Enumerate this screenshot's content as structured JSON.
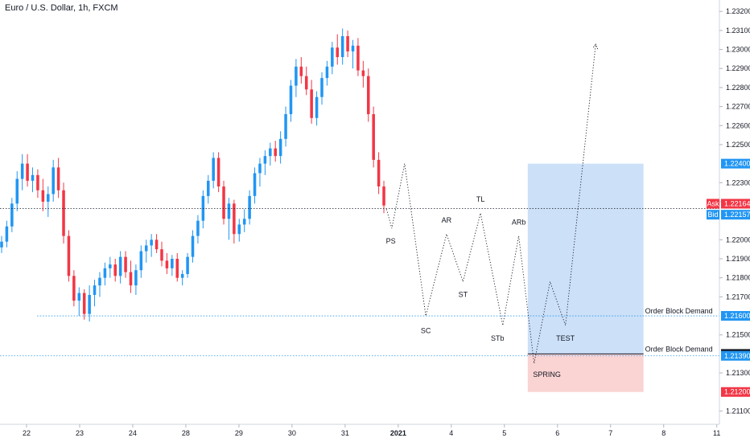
{
  "chart_data": {
    "type": "candlestick",
    "title": "Euro / U.S. Dollar, 1h, FXCM",
    "ylim": [
      1.2103,
      1.2326
    ],
    "y_ticks": [
      "1.23200",
      "1.23100",
      "1.23000",
      "1.22900",
      "1.22800",
      "1.22700",
      "1.22600",
      "1.22500",
      "1.22300",
      "1.22200",
      "1.22000",
      "1.21900",
      "1.21800",
      "1.21700",
      "1.21500",
      "1.21300",
      "1.21100"
    ],
    "x_ticks": [
      {
        "label": "22",
        "d": 22
      },
      {
        "label": "23",
        "d": 23
      },
      {
        "label": "24",
        "d": 24
      },
      {
        "label": "28",
        "d": 25
      },
      {
        "label": "29",
        "d": 26
      },
      {
        "label": "30",
        "d": 27
      },
      {
        "label": "31",
        "d": 28
      },
      {
        "label": "2021",
        "d": 29
      },
      {
        "label": "4",
        "d": 30
      },
      {
        "label": "5",
        "d": 31
      },
      {
        "label": "6",
        "d": 32
      },
      {
        "label": "7",
        "d": 33
      },
      {
        "label": "8",
        "d": 34
      },
      {
        "label": "11",
        "d": 35
      }
    ],
    "xlim": [
      21.5,
      35.05
    ],
    "up_color": "#2196f3",
    "down_color": "#f23645",
    "candles": [
      [
        1.2196,
        1.2202,
        1.2193,
        1.2199
      ],
      [
        1.2199,
        1.221,
        1.2196,
        1.2207
      ],
      [
        1.2207,
        1.2222,
        1.2204,
        1.2219
      ],
      [
        1.2219,
        1.2236,
        1.2215,
        1.2232
      ],
      [
        1.2232,
        1.2245,
        1.2226,
        1.224
      ],
      [
        1.224,
        1.2245,
        1.2228,
        1.2231
      ],
      [
        1.2231,
        1.2238,
        1.2225,
        1.2234
      ],
      [
        1.2234,
        1.2237,
        1.2222,
        1.2226
      ],
      [
        1.2226,
        1.2232,
        1.2215,
        1.222
      ],
      [
        1.222,
        1.2228,
        1.2212,
        1.2224
      ],
      [
        1.2224,
        1.2242,
        1.222,
        1.2238
      ],
      [
        1.2238,
        1.2243,
        1.2222,
        1.2226
      ],
      [
        1.2226,
        1.223,
        1.2198,
        1.2202
      ],
      [
        1.2202,
        1.2205,
        1.2178,
        1.2181
      ],
      [
        1.2181,
        1.2184,
        1.2165,
        1.2168
      ],
      [
        1.2168,
        1.2175,
        1.216,
        1.2172
      ],
      [
        1.2172,
        1.2174,
        1.2158,
        1.2161
      ],
      [
        1.2161,
        1.2176,
        1.2157,
        1.2171
      ],
      [
        1.2171,
        1.2179,
        1.2165,
        1.2176
      ],
      [
        1.2176,
        1.2183,
        1.217,
        1.218
      ],
      [
        1.218,
        1.2188,
        1.2176,
        1.2185
      ],
      [
        1.2185,
        1.2191,
        1.218,
        1.2187
      ],
      [
        1.2187,
        1.219,
        1.2178,
        1.2181
      ],
      [
        1.2181,
        1.2194,
        1.2177,
        1.2191
      ],
      [
        1.2191,
        1.2194,
        1.218,
        1.2183
      ],
      [
        1.2183,
        1.2189,
        1.2172,
        1.2176
      ],
      [
        1.2176,
        1.2187,
        1.2171,
        1.2184
      ],
      [
        1.2184,
        1.2197,
        1.218,
        1.2194
      ],
      [
        1.2194,
        1.22,
        1.2188,
        1.2197
      ],
      [
        1.2197,
        1.2203,
        1.2191,
        1.22
      ],
      [
        1.22,
        1.2203,
        1.2193,
        1.2195
      ],
      [
        1.2195,
        1.2199,
        1.2186,
        1.2189
      ],
      [
        1.2189,
        1.2193,
        1.2182,
        1.2185
      ],
      [
        1.2185,
        1.2192,
        1.2181,
        1.219
      ],
      [
        1.219,
        1.2193,
        1.2178,
        1.218
      ],
      [
        1.218,
        1.2184,
        1.2176,
        1.2182
      ],
      [
        1.2182,
        1.2193,
        1.218,
        1.2191
      ],
      [
        1.2191,
        1.2205,
        1.2188,
        1.2202
      ],
      [
        1.2202,
        1.2213,
        1.2198,
        1.221
      ],
      [
        1.221,
        1.2226,
        1.2206,
        1.2223
      ],
      [
        1.2223,
        1.2234,
        1.2219,
        1.2231
      ],
      [
        1.2231,
        1.2246,
        1.2227,
        1.2243
      ],
      [
        1.2243,
        1.2246,
        1.2225,
        1.2228
      ],
      [
        1.2228,
        1.2231,
        1.2208,
        1.2211
      ],
      [
        1.2211,
        1.2222,
        1.22,
        1.2219
      ],
      [
        1.2219,
        1.2221,
        1.2198,
        1.2203
      ],
      [
        1.2203,
        1.2211,
        1.2199,
        1.2208
      ],
      [
        1.2208,
        1.2216,
        1.2204,
        1.2211
      ],
      [
        1.2211,
        1.2226,
        1.2208,
        1.2223
      ],
      [
        1.2223,
        1.2238,
        1.2219,
        1.2235
      ],
      [
        1.2235,
        1.2243,
        1.2228,
        1.224
      ],
      [
        1.224,
        1.2247,
        1.2234,
        1.2244
      ],
      [
        1.2244,
        1.2251,
        1.2239,
        1.2248
      ],
      [
        1.2248,
        1.2252,
        1.2241,
        1.2244
      ],
      [
        1.2244,
        1.2257,
        1.224,
        1.2253
      ],
      [
        1.2253,
        1.227,
        1.2249,
        1.2266
      ],
      [
        1.2266,
        1.2284,
        1.2262,
        1.2281
      ],
      [
        1.2281,
        1.2295,
        1.2275,
        1.2291
      ],
      [
        1.2291,
        1.2296,
        1.2282,
        1.2286
      ],
      [
        1.2286,
        1.2291,
        1.2276,
        1.2279
      ],
      [
        1.2279,
        1.2284,
        1.2261,
        1.2264
      ],
      [
        1.2264,
        1.2278,
        1.226,
        1.2275
      ],
      [
        1.2275,
        1.2288,
        1.2271,
        1.2285
      ],
      [
        1.2285,
        1.2294,
        1.2281,
        1.2291
      ],
      [
        1.2291,
        1.2304,
        1.2287,
        1.2301
      ],
      [
        1.2301,
        1.2308,
        1.2292,
        1.2296
      ],
      [
        1.2296,
        1.2311,
        1.2292,
        1.2307
      ],
      [
        1.2307,
        1.231,
        1.2296,
        1.2299
      ],
      [
        1.2299,
        1.2305,
        1.229,
        1.2302
      ],
      [
        1.2302,
        1.2306,
        1.2286,
        1.2289
      ],
      [
        1.2289,
        1.2294,
        1.228,
        1.2286
      ],
      [
        1.2286,
        1.229,
        1.2262,
        1.2266
      ],
      [
        1.2266,
        1.227,
        1.2238,
        1.2242
      ],
      [
        1.2242,
        1.2246,
        1.2224,
        1.2228
      ],
      [
        1.2228,
        1.2231,
        1.2214,
        1.2218
      ]
    ],
    "series": [
      {
        "name": "",
        "points": [
          [
            28.78,
            1.2216
          ],
          [
            28.88,
            1.2206
          ],
          [
            29.12,
            1.224
          ],
          [
            29.52,
            1.216
          ],
          [
            29.91,
            1.2203
          ],
          [
            30.22,
            1.2178
          ],
          [
            30.55,
            1.2214
          ],
          [
            30.97,
            1.2155
          ],
          [
            31.27,
            1.2202
          ],
          [
            31.56,
            1.2135
          ],
          [
            31.86,
            1.2178
          ],
          [
            32.15,
            1.2155
          ],
          [
            32.72,
            1.2303
          ]
        ]
      }
    ],
    "annotations": [
      {
        "text": "PS",
        "x": 28.86,
        "y": 1.2198
      },
      {
        "text": "SC",
        "x": 29.52,
        "y": 1.2151
      },
      {
        "text": "AR",
        "x": 29.91,
        "y": 1.2209
      },
      {
        "text": "ST",
        "x": 30.22,
        "y": 1.217
      },
      {
        "text": "TL",
        "x": 30.55,
        "y": 1.222
      },
      {
        "text": "STb",
        "x": 30.87,
        "y": 1.2147
      },
      {
        "text": "ARb",
        "x": 31.27,
        "y": 1.2208
      },
      {
        "text": "SPRING",
        "x": 31.8,
        "y": 1.2128
      },
      {
        "text": "TEST",
        "x": 32.15,
        "y": 1.2147
      }
    ],
    "reference_lines": [
      {
        "name": "Ask/Bid",
        "y": 1.22164,
        "dotted": true,
        "color": "#131722"
      },
      {
        "name": "Order Block Demand",
        "y": 1.216,
        "dotted": true,
        "color": "#2196f3",
        "x_start": 22.2
      },
      {
        "name": "Order Block Demand",
        "y": 1.2139,
        "dotted": true,
        "color": "#2196f3",
        "x_start": 21.5
      }
    ],
    "labels": {
      "order_block_demand": "Order Block Demand"
    },
    "zones": [
      {
        "kind": "target",
        "x0": 31.44,
        "x1": 33.62,
        "y0": 1.214,
        "y1": 1.224,
        "color": "#bbd6f5"
      },
      {
        "kind": "stop",
        "x0": 31.44,
        "x1": 33.62,
        "y0": 1.212,
        "y1": 1.214,
        "color": "#f8c4c4"
      }
    ],
    "price_tags": [
      {
        "label": "Ask",
        "value": "1.22164",
        "y": 1.22164,
        "color": "#f23645"
      },
      {
        "label": "Bid",
        "value": "1.22157",
        "y": 1.22157,
        "color": "#2196f3"
      },
      {
        "label": "",
        "value": "1.22400",
        "y": 1.224,
        "color": "#2196f3"
      },
      {
        "label": "",
        "value": "1.21600",
        "y": 1.216,
        "color": "#2196f3"
      },
      {
        "label": "",
        "value": "1.21400",
        "y": 1.214,
        "color": "#131722"
      },
      {
        "label": "",
        "value": "1.21390",
        "y": 1.2139,
        "color": "#2196f3"
      },
      {
        "label": "",
        "value": "1.21200",
        "y": 1.212,
        "color": "#f23645"
      }
    ]
  }
}
